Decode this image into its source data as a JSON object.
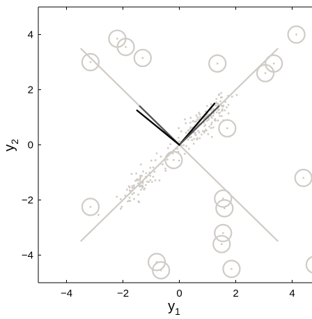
{
  "chart_data": {
    "type": "scatter",
    "xlabel": "y",
    "xlabel_sub": "1",
    "ylabel": "y",
    "ylabel_sub": "2",
    "xlim": [
      -5,
      5
    ],
    "ylim": [
      -5,
      5
    ],
    "xticks": [
      -4,
      -2,
      0,
      2,
      4
    ],
    "xtick_labels": [
      "−4",
      "−2",
      "0",
      "2",
      "4"
    ],
    "yticks": [
      -4,
      -2,
      0,
      2,
      4
    ],
    "ytick_labels": [
      "−4",
      "−2",
      "0",
      "2",
      "4"
    ],
    "grid": false,
    "colors": {
      "gray": "#cfcbc5",
      "dark": "#000000",
      "mid": "#555555",
      "axis": "#000000"
    },
    "reference_lines": [
      {
        "x": [
          -3.5,
          3.5
        ],
        "y": [
          -3.5,
          3.5
        ]
      },
      {
        "x": [
          -3.5,
          3.5
        ],
        "y": [
          3.5,
          -3.5
        ]
      }
    ],
    "vectors": [
      {
        "to": [
          1.25,
          1.5
        ],
        "shade": "dark"
      },
      {
        "to": [
          1.4,
          1.4
        ],
        "shade": "mid"
      },
      {
        "to": [
          -1.4,
          1.4
        ],
        "shade": "mid"
      },
      {
        "to": [
          -1.5,
          1.25
        ],
        "shade": "dark"
      }
    ],
    "outliers": [
      [
        -2.2,
        3.85
      ],
      [
        -1.9,
        3.55
      ],
      [
        -1.3,
        3.15
      ],
      [
        -3.15,
        3.0
      ],
      [
        1.35,
        2.95
      ],
      [
        3.35,
        2.95
      ],
      [
        3.05,
        2.6
      ],
      [
        4.15,
        4.0
      ],
      [
        1.7,
        0.6
      ],
      [
        -0.2,
        -0.55
      ],
      [
        -3.15,
        -2.25
      ],
      [
        4.4,
        -1.2
      ],
      [
        1.55,
        -1.95
      ],
      [
        1.6,
        -2.3
      ],
      [
        1.55,
        -3.2
      ],
      [
        1.5,
        -3.6
      ],
      [
        1.85,
        -4.5
      ],
      [
        -0.8,
        -4.25
      ],
      [
        -0.65,
        -4.55
      ],
      [
        4.8,
        -4.35
      ]
    ],
    "clusters": [
      {
        "center": [
          0.9,
          0.85
        ],
        "n": 150,
        "spread_major": 0.7,
        "spread_minor": 0.22
      },
      {
        "center": [
          -1.35,
          -1.35
        ],
        "n": 90,
        "spread_major": 0.55,
        "spread_minor": 0.2
      }
    ]
  }
}
